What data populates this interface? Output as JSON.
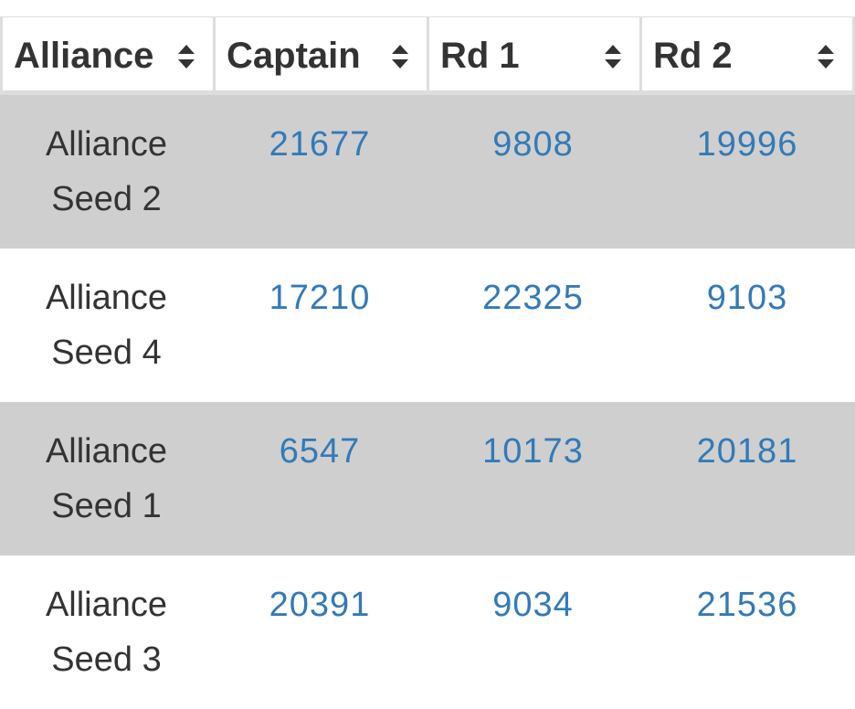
{
  "table": {
    "headers": [
      {
        "label": "Alliance"
      },
      {
        "label": "Captain"
      },
      {
        "label": "Rd 1"
      },
      {
        "label": "Rd 2"
      }
    ],
    "rows": [
      {
        "alliance_line1": "Alliance",
        "alliance_line2": "Seed 2",
        "captain": "21677",
        "rd1": "9808",
        "rd2": "19996"
      },
      {
        "alliance_line1": "Alliance",
        "alliance_line2": "Seed 4",
        "captain": "17210",
        "rd1": "22325",
        "rd2": "9103"
      },
      {
        "alliance_line1": "Alliance",
        "alliance_line2": "Seed 1",
        "captain": "6547",
        "rd1": "10173",
        "rd2": "20181"
      },
      {
        "alliance_line1": "Alliance",
        "alliance_line2": "Seed 3",
        "captain": "20391",
        "rd1": "9034",
        "rd2": "21536"
      }
    ]
  },
  "colors": {
    "link": "#337ab7",
    "text": "#333333",
    "stripe": "#cfcfcf",
    "border": "#dddddd"
  },
  "icons": {
    "sort": "sort-icon"
  }
}
